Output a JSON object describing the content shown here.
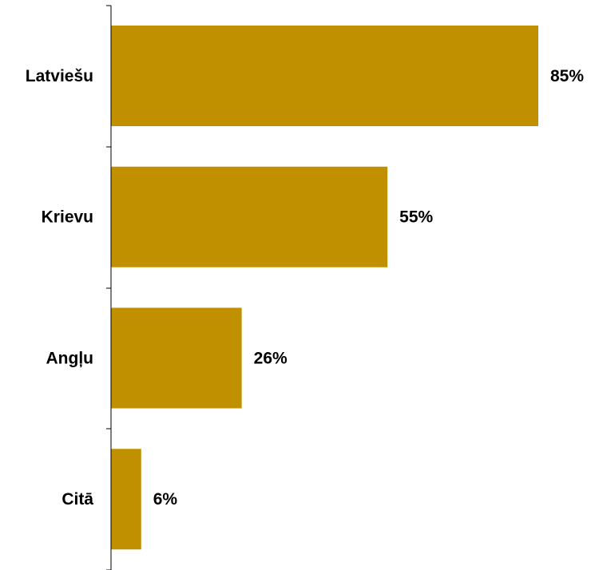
{
  "chart_data": {
    "type": "bar",
    "orientation": "horizontal",
    "categories": [
      "Latviešu",
      "Krievu",
      "Angļu",
      "Citā"
    ],
    "values": [
      85,
      55,
      26,
      6
    ],
    "value_labels": [
      "85%",
      "55%",
      "26%",
      "6%"
    ],
    "unit": "%",
    "xlim": [
      0,
      100
    ],
    "grid": false,
    "legend": "none",
    "bar_color": "#C09000",
    "title": "",
    "xlabel": "",
    "ylabel": ""
  }
}
